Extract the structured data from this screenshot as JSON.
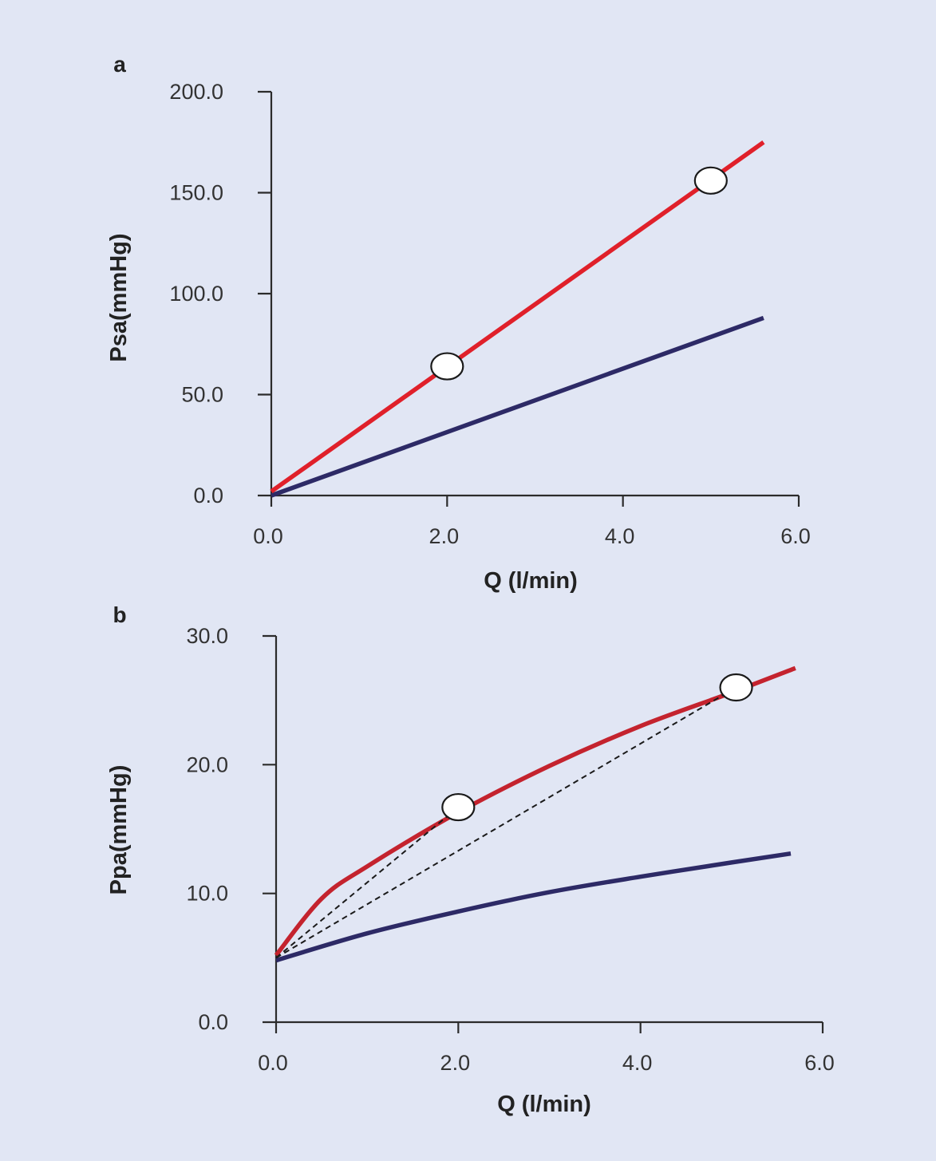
{
  "chart_data": [
    {
      "type": "line",
      "panel_label": "a",
      "xlabel": "Q (l/min)",
      "ylabel": "Psa(mmHg)",
      "xlim": [
        0,
        6
      ],
      "ylim": [
        0,
        200
      ],
      "xticks": [
        "0.0",
        "2.0",
        "4.0",
        "6.0"
      ],
      "yticks": [
        "0.0",
        "50.0",
        "100.0",
        "150.0",
        "200.0"
      ],
      "grid": false,
      "series": [
        {
          "name": "red line",
          "color": "#e0202a",
          "x": [
            0,
            5.6
          ],
          "y": [
            2,
            175
          ],
          "curve": "linear"
        },
        {
          "name": "blue line",
          "color": "#2d2a66",
          "x": [
            0,
            5.6
          ],
          "y": [
            0,
            88
          ],
          "curve": "linear"
        }
      ],
      "markers": [
        {
          "x": 2.0,
          "y": 64
        },
        {
          "x": 5.0,
          "y": 156
        }
      ]
    },
    {
      "type": "line",
      "panel_label": "b",
      "xlabel": "Q (l/min)",
      "ylabel": "Ppa(mmHg)",
      "xlim": [
        0,
        6
      ],
      "ylim": [
        0,
        30
      ],
      "xticks": [
        "0.0",
        "2.0",
        "4.0",
        "6.0"
      ],
      "yticks": [
        "0.0",
        "10.0",
        "20.0",
        "30.0"
      ],
      "grid": false,
      "series": [
        {
          "name": "red curve",
          "color": "#c4232e",
          "x": [
            0,
            0.5,
            1,
            2,
            3,
            4,
            5,
            5.7
          ],
          "y": [
            5.2,
            9.6,
            12.1,
            16.3,
            19.9,
            23.0,
            25.6,
            27.5
          ],
          "curve": "smooth"
        },
        {
          "name": "blue curve",
          "color": "#2d2a66",
          "x": [
            0,
            1,
            2,
            3,
            4,
            5,
            5.65
          ],
          "y": [
            4.8,
            6.9,
            8.6,
            10.1,
            11.3,
            12.4,
            13.1
          ],
          "curve": "smooth"
        }
      ],
      "dashed_lines": [
        {
          "x": [
            0,
            2.0
          ],
          "y": [
            5.0,
            16.7
          ]
        },
        {
          "x": [
            0,
            5.05
          ],
          "y": [
            5.0,
            26.0
          ]
        }
      ],
      "markers": [
        {
          "x": 2.0,
          "y": 16.7
        },
        {
          "x": 5.05,
          "y": 26.0
        }
      ]
    }
  ]
}
